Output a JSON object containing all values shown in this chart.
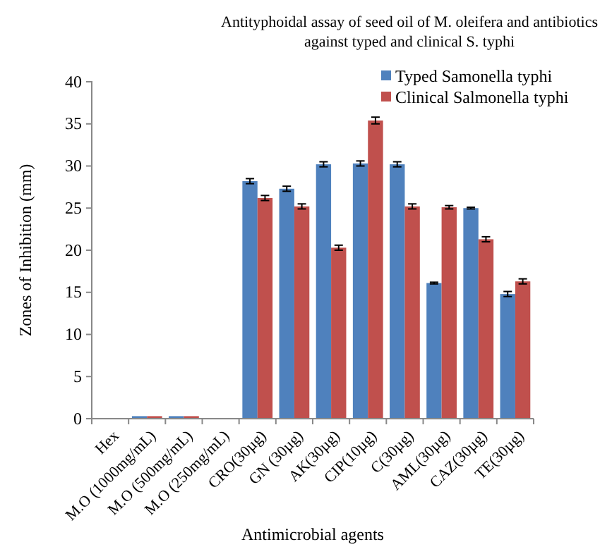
{
  "chart_data": {
    "type": "bar",
    "title": "Antityphoidal assay of seed oil of M. oleifera and antibiotics\nagainst typed and clinical S. typhi",
    "xlabel": "Antimicrobial agents",
    "ylabel": "Zones of Inhibition (mm)",
    "categories": [
      "Hex",
      "M.O (1000mg/mL)",
      "M.O (500mg/mL)",
      "M.O (250mg/mL)",
      "CRO(30µg)",
      "GN (30µg)",
      "AK(30µg)",
      "CIP(10µg)",
      "C(30µg)",
      "AML(30µg)",
      "CAZ(30µg)",
      "TE(30µg)"
    ],
    "series": [
      {
        "name": "Typed Samonella typhi",
        "color": "#4f81bd",
        "values": [
          0,
          0.3,
          0.3,
          0,
          28.2,
          27.3,
          30.2,
          30.3,
          30.2,
          16.1,
          25.0,
          14.8
        ],
        "errors": [
          null,
          null,
          null,
          null,
          0.3,
          0.3,
          0.3,
          0.3,
          0.3,
          0.1,
          0.1,
          0.3
        ]
      },
      {
        "name": "Clinical Salmonella typhi",
        "color": "#c0504d",
        "values": [
          0,
          0.3,
          0.3,
          0,
          26.2,
          25.2,
          20.3,
          35.4,
          25.2,
          25.1,
          21.3,
          16.3
        ],
        "errors": [
          null,
          null,
          null,
          null,
          0.3,
          0.3,
          0.3,
          0.4,
          0.3,
          0.2,
          0.3,
          0.3
        ]
      }
    ],
    "ylim": [
      0,
      40
    ],
    "yticks": [
      0,
      5,
      10,
      15,
      20,
      25,
      30,
      35,
      40
    ],
    "legend": "top right",
    "grid": false
  }
}
